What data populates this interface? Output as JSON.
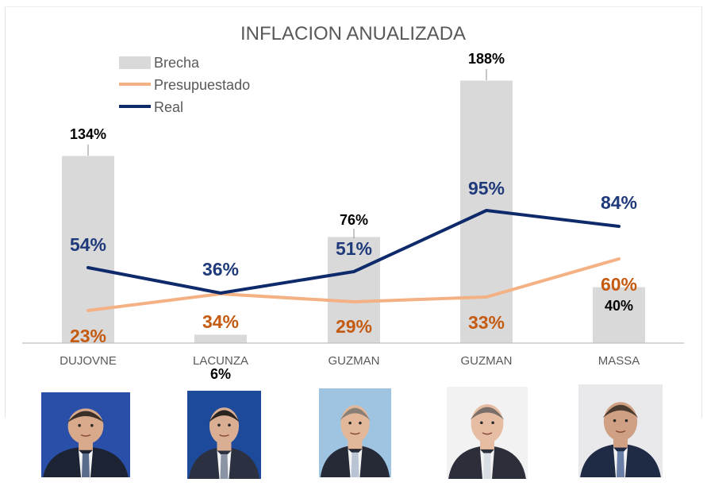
{
  "chart_data": {
    "type": "bar",
    "title": "INFLACION ANUALIZADA",
    "categories": [
      "DUJOVNE",
      "LACUNZA",
      "GUZMAN",
      "GUZMAN",
      "MASSA"
    ],
    "ylim": [
      0,
      200
    ],
    "grid": false,
    "legend_position": "top-left",
    "series": [
      {
        "name": "Brecha",
        "type": "bar",
        "color": "#d9d9d9",
        "values": [
          134,
          6,
          76,
          188,
          40
        ],
        "labels": [
          "134%",
          "6%",
          "76%",
          "188%",
          "40%"
        ]
      },
      {
        "name": "Presupuestado",
        "type": "line",
        "color": "#f4b183",
        "values": [
          23,
          34,
          29,
          33,
          60
        ],
        "labels": [
          "23%",
          "34%",
          "29%",
          "33%",
          "60%"
        ]
      },
      {
        "name": "Real",
        "type": "line",
        "color": "#0e2a6b",
        "values": [
          54,
          36,
          51,
          95,
          84
        ],
        "labels": [
          "54%",
          "36%",
          "51%",
          "95%",
          "84%"
        ]
      }
    ]
  },
  "colors": {
    "title": "#595959",
    "axis": "#bfbfbf",
    "category_label": "#595959",
    "bar_label": "#000000",
    "budget_label": "#c55a11",
    "real_label": "#1f3a7a"
  },
  "photos": [
    {
      "name": "photo-dujovne",
      "bg": "#2a4fa8",
      "skin": "#d8a98a",
      "hair": "#3a3028",
      "suit": "#1c2333",
      "tie": "#5a6c8c"
    },
    {
      "name": "photo-lacunza",
      "bg": "#1d4a9a",
      "skin": "#d9ae92",
      "hair": "#2a2420",
      "suit": "#2b3140",
      "tie": "#8a94a4"
    },
    {
      "name": "photo-guzman-1",
      "bg": "#9fc4e2",
      "skin": "#e2b79a",
      "hair": "#8a7f76",
      "suit": "#262a36",
      "tie": "#b9c4d4"
    },
    {
      "name": "photo-guzman-2",
      "bg": "#f2f2f2",
      "skin": "#e6bca2",
      "hair": "#7a6f68",
      "suit": "#2c2f3a",
      "tie": "#d9dde4"
    },
    {
      "name": "photo-massa",
      "bg": "#e9e9ec",
      "skin": "#cfa084",
      "hair": "#4a3a30",
      "suit": "#1f2a44",
      "tie": "#6a7fa8"
    }
  ]
}
